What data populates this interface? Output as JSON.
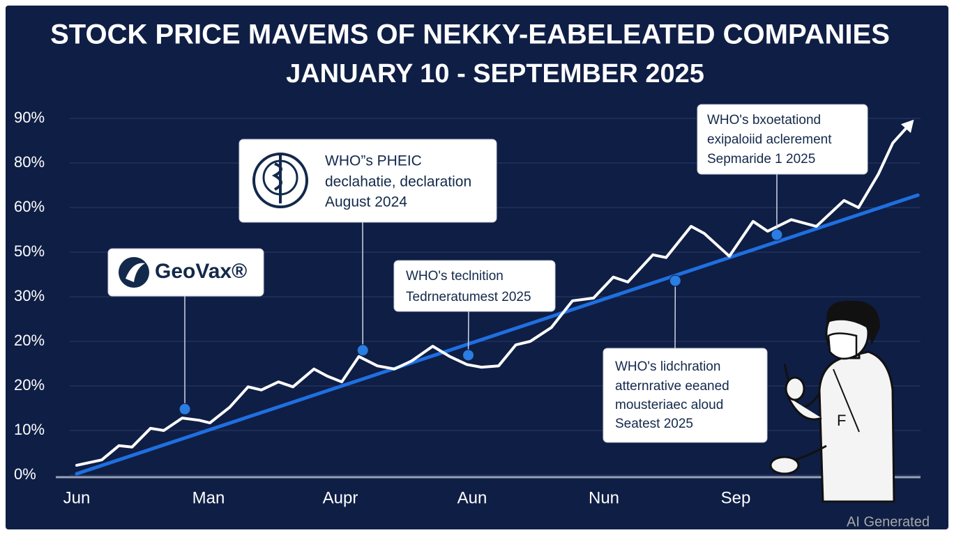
{
  "chart_data": {
    "type": "line",
    "title": "STOCK PRICE MAVEMS OF NEKKY-EABELEATED COMPANIES",
    "subtitle": "JANUARY 10 - SEPTEMBER 2025",
    "y_axis_labels": [
      "0%",
      "10%",
      "20%",
      "20%",
      "30%",
      "50%",
      "60%",
      "80%",
      "90%"
    ],
    "ylim": [
      0,
      8
    ],
    "xlim": [
      0,
      6.4
    ],
    "categories": [
      "Jun",
      "Man",
      "Aupr",
      "Aun",
      "Nun",
      "Sep"
    ],
    "series": [
      {
        "color": "#ffffff",
        "x": [
          0,
          0.19,
          0.32,
          0.42,
          0.56,
          0.66,
          0.8,
          0.93,
          1.01,
          1.16,
          1.3,
          1.4,
          1.53,
          1.64,
          1.8,
          1.9,
          2.01,
          2.14,
          2.28,
          2.41,
          2.54,
          2.7,
          2.83,
          2.96,
          3.07,
          3.2,
          3.33,
          3.44,
          3.6,
          3.76,
          3.92,
          4.07,
          4.18,
          4.37,
          4.47,
          4.66,
          4.76,
          4.95,
          5.13,
          5.24,
          5.42,
          5.61,
          5.82,
          5.93,
          6.08,
          6.19,
          6.3
        ],
        "values": [
          0.22,
          0.34,
          0.66,
          0.63,
          1.05,
          1.0,
          1.28,
          1.23,
          1.17,
          1.52,
          1.98,
          1.91,
          2.09,
          1.98,
          2.38,
          2.22,
          2.09,
          2.66,
          2.45,
          2.38,
          2.56,
          2.89,
          2.66,
          2.48,
          2.42,
          2.45,
          2.92,
          3.0,
          3.31,
          3.91,
          3.97,
          4.44,
          4.33,
          4.94,
          4.88,
          5.58,
          5.42,
          4.91,
          5.69,
          5.47,
          5.73,
          5.58,
          6.16,
          6.0,
          6.75,
          7.45,
          7.81
        ]
      },
      {
        "color": "#1f6fe0",
        "x": [
          0,
          6.38
        ],
        "values": [
          0.03,
          6.28
        ]
      }
    ],
    "annotations": [
      {
        "lines": [
          "GeoVax®"
        ],
        "x": 0.82,
        "y": 1.48
      },
      {
        "lines": [
          "WHO”s PHEIC",
          "declahatie, declaration",
          "August 2024"
        ],
        "x": 2.17,
        "y": 2.8
      },
      {
        "lines": [
          "WHO's teclnition",
          "Tedrneratumest 2025"
        ],
        "x": 2.97,
        "y": 2.69
      },
      {
        "lines": [
          "WHO's bxoetationd",
          "exipaloiid aclerement",
          "Sepmaride 1 2025"
        ],
        "x": 5.31,
        "y": 5.39
      },
      {
        "lines": [
          "WHO's lidchration",
          "atternrative eeaned",
          "mousteriaec aloud",
          "Seatest 2025"
        ],
        "x": 4.54,
        "y": 4.36
      }
    ],
    "watermark": "AI Generated"
  }
}
